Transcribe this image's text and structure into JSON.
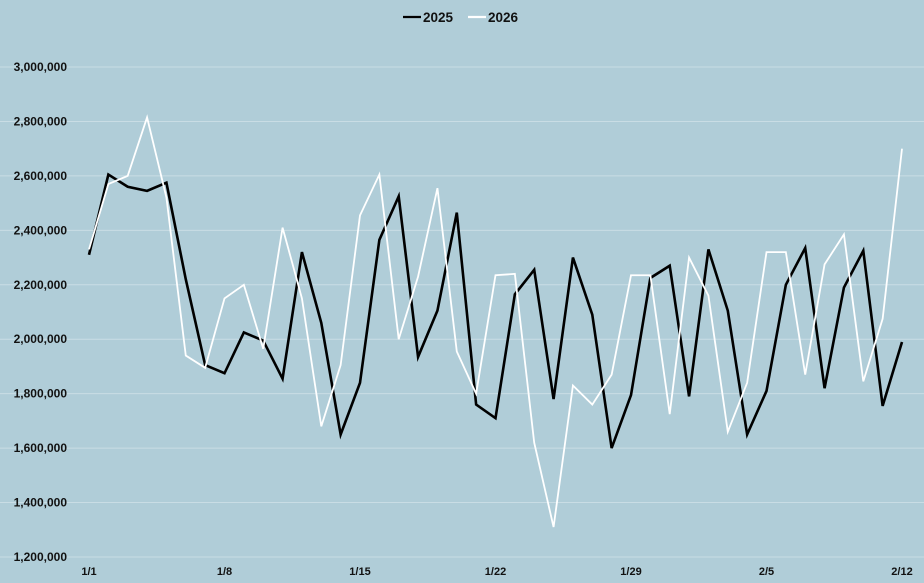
{
  "chart_data": {
    "type": "line",
    "title": "",
    "xlabel": "",
    "ylabel": "",
    "ylim": [
      1200000,
      3000000
    ],
    "y_ticks": [
      1200000,
      1400000,
      1600000,
      1800000,
      2000000,
      2200000,
      2400000,
      2600000,
      2800000,
      3000000
    ],
    "y_tick_labels": [
      "1,200,000",
      "1,400,000",
      "1,600,000",
      "1,800,000",
      "2,000,000",
      "2,200,000",
      "2,400,000",
      "2,600,000",
      "2,800,000",
      "3,000,000"
    ],
    "x_tick_labels": [
      "1/1",
      "1/8",
      "1/15",
      "1/22",
      "1/29",
      "2/5",
      "2/12"
    ],
    "x_tick_indices": [
      0,
      7,
      14,
      21,
      28,
      35,
      42
    ],
    "x": [
      "1/1",
      "1/2",
      "1/3",
      "1/4",
      "1/5",
      "1/6",
      "1/7",
      "1/8",
      "1/9",
      "1/10",
      "1/11",
      "1/12",
      "1/13",
      "1/14",
      "1/15",
      "1/16",
      "1/17",
      "1/18",
      "1/19",
      "1/20",
      "1/21",
      "1/22",
      "1/23",
      "1/24",
      "1/25",
      "1/26",
      "1/27",
      "1/28",
      "1/29",
      "1/30",
      "1/31",
      "2/1",
      "2/2",
      "2/3",
      "2/4",
      "2/5",
      "2/6",
      "2/7",
      "2/8",
      "2/9",
      "2/10",
      "2/11",
      "2/12"
    ],
    "grid": true,
    "legend_position": "top-center",
    "series": [
      {
        "name": "2025",
        "color": "#000000",
        "values": [
          2310000,
          2605000,
          2560000,
          2545000,
          2575000,
          2220000,
          1905000,
          1875000,
          2025000,
          1995000,
          1855000,
          2320000,
          2060000,
          1650000,
          1840000,
          2365000,
          2525000,
          1935000,
          2105000,
          2465000,
          1760000,
          1710000,
          2165000,
          2255000,
          1780000,
          2300000,
          2090000,
          1600000,
          1795000,
          2225000,
          2270000,
          1790000,
          2330000,
          2105000,
          1650000,
          1810000,
          2200000,
          2335000,
          1820000,
          2190000,
          2325000,
          1755000,
          1990000
        ]
      },
      {
        "name": "2026",
        "color": "#ffffff",
        "values": [
          2330000,
          2570000,
          2600000,
          2815000,
          2520000,
          1940000,
          1895000,
          2150000,
          2200000,
          1965000,
          2410000,
          2150000,
          1680000,
          1905000,
          2455000,
          2605000,
          2000000,
          2230000,
          2555000,
          1955000,
          1800000,
          2235000,
          2240000,
          1620000,
          1310000,
          1830000,
          1760000,
          1870000,
          2235000,
          2235000,
          1725000,
          2300000,
          2160000,
          1660000,
          1840000,
          2320000,
          2320000,
          1870000,
          2275000,
          2385000,
          1845000,
          2075000,
          2700000
        ]
      }
    ]
  }
}
